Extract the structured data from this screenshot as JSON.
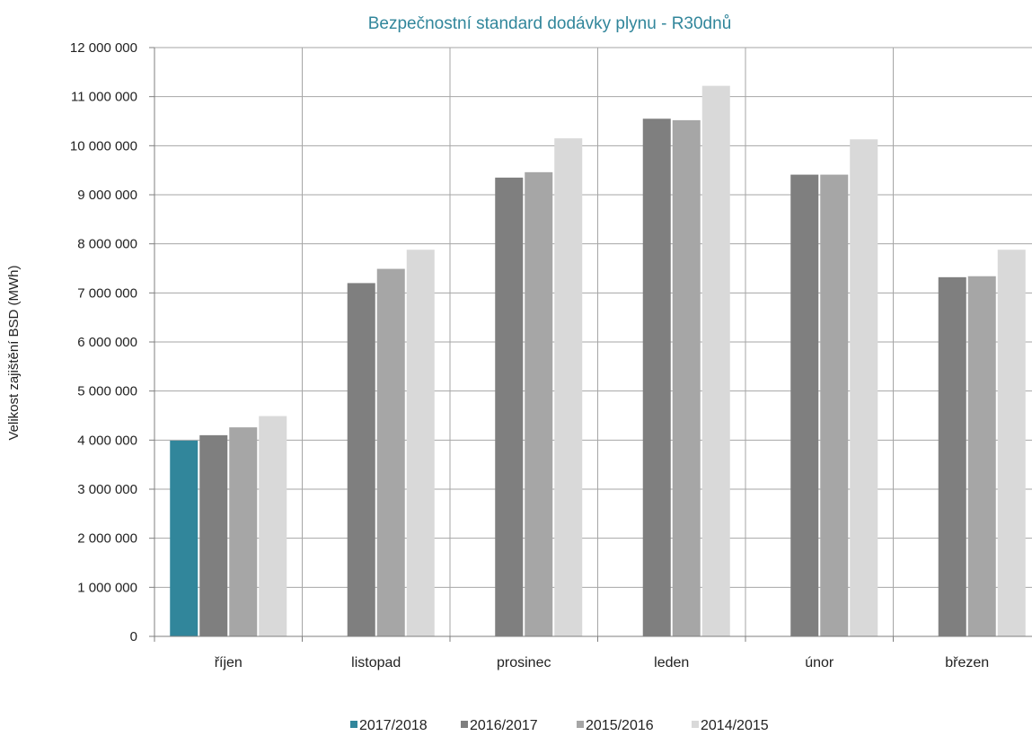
{
  "chart_data": {
    "type": "bar",
    "title": "Bezpečnostní standard dodávky plynu - R30dnů",
    "ylabel": "Velikost zajištění BSD (MWh)",
    "xlabel": "",
    "ylim": [
      0,
      12000000
    ],
    "ytick_step": 1000000,
    "ytick_labels": [
      "0",
      "1 000 000",
      "2 000 000",
      "3 000 000",
      "4 000 000",
      "5 000 000",
      "6 000 000",
      "7 000 000",
      "8 000 000",
      "9 000 000",
      "10 000 000",
      "11 000 000",
      "12 000 000"
    ],
    "categories": [
      "říjen",
      "listopad",
      "prosinec",
      "leden",
      "únor",
      "březen"
    ],
    "grid": "vertical and horizontal",
    "legend_position": "bottom",
    "series": [
      {
        "name": "2017/2018",
        "color": "#31869b",
        "values": [
          3990000,
          null,
          null,
          null,
          null,
          null
        ]
      },
      {
        "name": "2016/2017",
        "color": "#7f7f7f",
        "values": [
          4100000,
          7200000,
          9350000,
          10550000,
          9410000,
          7320000
        ]
      },
      {
        "name": "2015/2016",
        "color": "#a6a6a6",
        "values": [
          4260000,
          7490000,
          9460000,
          10520000,
          9410000,
          7340000
        ]
      },
      {
        "name": "2014/2015",
        "color": "#d9d9d9",
        "values": [
          4490000,
          7880000,
          10150000,
          11220000,
          10130000,
          7880000
        ]
      }
    ],
    "title_color": "#31869b",
    "grid_color": "#a6a6a6"
  }
}
